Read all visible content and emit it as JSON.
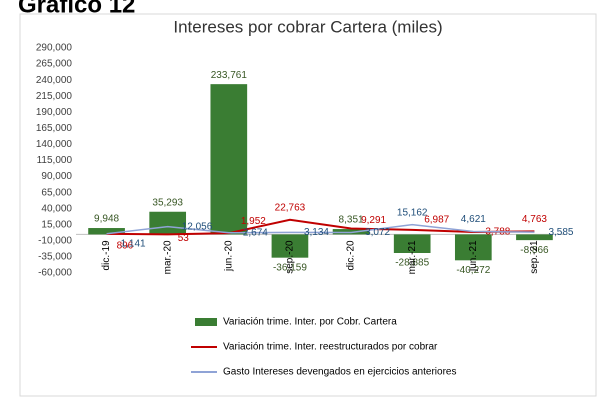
{
  "heading": "Gráfico 12",
  "chart_data": {
    "type": "bar",
    "title": "Intereses por cobrar Cartera (miles)",
    "categories": [
      "dic.-19",
      "mar.-20",
      "jun.-20",
      "sep.-20",
      "dic.-20",
      "mar.-21",
      "jun.-21",
      "sep.-21"
    ],
    "series": [
      {
        "name": "Variación trime. Inter. por Cobr. Cartera",
        "type": "bar",
        "color": "#3a7d33",
        "values": [
          9948,
          35293,
          233761,
          -36159,
          8351,
          -28885,
          -40272,
          -8866
        ],
        "value_labels": [
          "9,948",
          "35,293",
          "233,761",
          "-36,159",
          "8,351",
          "-28,885",
          "-40,272",
          "-8,866"
        ]
      },
      {
        "name": "Variación trime. Inter. reestructurados por cobrar",
        "type": "line",
        "color": "#c00000",
        "values": [
          896,
          53,
          1952,
          22763,
          9291,
          6987,
          3788,
          4763
        ],
        "value_labels": [
          "896",
          "53",
          "1,952",
          "22,763",
          "9,291",
          "6,987",
          "3,788",
          "4,763"
        ]
      },
      {
        "name": "Gasto Intereses devengados en ejercicios anteriores",
        "type": "line",
        "color": "#8fa3d6",
        "values": [
          1141,
          12056,
          2674,
          3134,
          3072,
          15162,
          4621,
          3585
        ],
        "value_labels": [
          "1,141",
          "12,056",
          "2,674",
          "3,134",
          "3,072",
          "15,162",
          "4,621",
          "3,585"
        ]
      }
    ],
    "ylim": [
      -60000,
      290000
    ],
    "yticks": [
      {
        "value": -60000,
        "label": "-60,000"
      },
      {
        "value": -35000,
        "label": "-35,000"
      },
      {
        "value": -10000,
        "label": "-10,000"
      },
      {
        "value": 15000,
        "label": "15,000"
      },
      {
        "value": 40000,
        "label": "40,000"
      },
      {
        "value": 65000,
        "label": "65,000"
      },
      {
        "value": 90000,
        "label": "90,000"
      },
      {
        "value": 115000,
        "label": "115,000"
      },
      {
        "value": 140000,
        "label": "140,000"
      },
      {
        "value": 165000,
        "label": "165,000"
      },
      {
        "value": 190000,
        "label": "190,000"
      },
      {
        "value": 215000,
        "label": "215,000"
      },
      {
        "value": 240000,
        "label": "240,000"
      },
      {
        "value": 265000,
        "label": "265,000"
      },
      {
        "value": 290000,
        "label": "290,000"
      }
    ],
    "grid": false,
    "legend": "bottom"
  }
}
